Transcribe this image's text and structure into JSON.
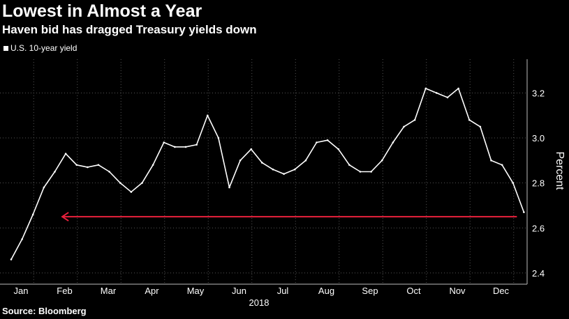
{
  "header": {
    "title": "Lowest in Almost a Year",
    "subtitle": "Haven bid has dragged Treasury yields down"
  },
  "legend": {
    "label": "U.S. 10-year yield"
  },
  "footer": {
    "source": "Source: Bloomberg"
  },
  "colors": {
    "background": "#000000",
    "series": "#ffffff",
    "arrow": "#e8203c",
    "grid": "#555555"
  },
  "chart_data": {
    "type": "line",
    "title": "Lowest in Almost a Year",
    "subtitle": "Haven bid has dragged Treasury yields down",
    "ylabel": "Percent",
    "xlabel": "2018",
    "ylim": [
      2.35,
      3.35
    ],
    "yticks": [
      2.4,
      2.6,
      2.8,
      3.0,
      3.2
    ],
    "ytick_labels": [
      "2.4",
      "2.6",
      "2.8",
      "3.0",
      "3.2"
    ],
    "xtick_labels": [
      "Jan",
      "Feb",
      "Mar",
      "Apr",
      "May",
      "Jun",
      "Jul",
      "Aug",
      "Sep",
      "Oct",
      "Nov",
      "Dec"
    ],
    "xaxis_year": "2018",
    "grid": "dotted",
    "legend_position": "top-left",
    "series": [
      {
        "name": "U.S. 10-year yield",
        "x": [
          0,
          0.25,
          0.5,
          0.75,
          1.0,
          1.25,
          1.5,
          1.75,
          2.0,
          2.25,
          2.5,
          2.75,
          3.0,
          3.25,
          3.5,
          3.75,
          4.0,
          4.25,
          4.5,
          4.75,
          5.0,
          5.25,
          5.5,
          5.75,
          6.0,
          6.25,
          6.5,
          6.75,
          7.0,
          7.25,
          7.5,
          7.75,
          8.0,
          8.25,
          8.5,
          8.75,
          9.0,
          9.25,
          9.5,
          9.75,
          10.0,
          10.25,
          10.5,
          10.75,
          11.0,
          11.25,
          11.5,
          11.75
        ],
        "values": [
          2.46,
          2.55,
          2.66,
          2.78,
          2.85,
          2.93,
          2.88,
          2.87,
          2.88,
          2.85,
          2.8,
          2.76,
          2.8,
          2.88,
          2.98,
          2.96,
          2.96,
          2.97,
          3.1,
          3.0,
          2.78,
          2.9,
          2.95,
          2.89,
          2.86,
          2.84,
          2.86,
          2.9,
          2.98,
          2.99,
          2.95,
          2.88,
          2.85,
          2.85,
          2.9,
          2.98,
          3.05,
          3.08,
          3.22,
          3.2,
          3.18,
          3.22,
          3.08,
          3.05,
          2.9,
          2.88,
          2.8,
          2.67
        ]
      }
    ],
    "annotations": [
      {
        "type": "arrow",
        "y": 2.65,
        "x_from": 11.75,
        "x_to": 1.17
      }
    ]
  }
}
